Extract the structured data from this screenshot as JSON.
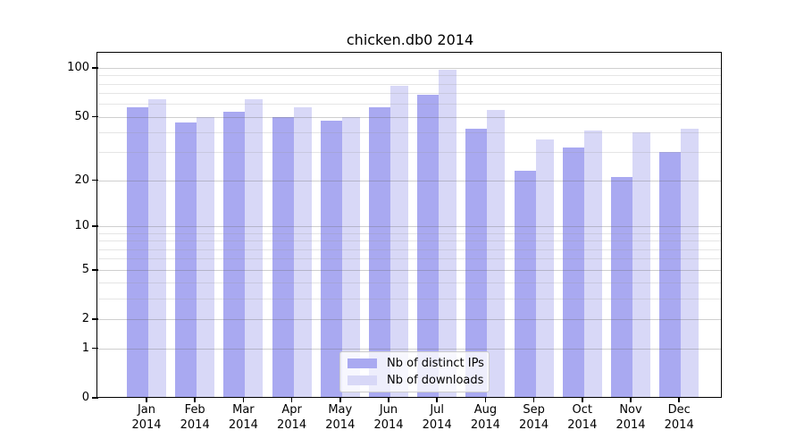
{
  "chart_data": {
    "type": "bar",
    "title": "chicken.db0 2014",
    "categories": [
      {
        "month": "Jan",
        "year": "2014"
      },
      {
        "month": "Feb",
        "year": "2014"
      },
      {
        "month": "Mar",
        "year": "2014"
      },
      {
        "month": "Apr",
        "year": "2014"
      },
      {
        "month": "May",
        "year": "2014"
      },
      {
        "month": "Jun",
        "year": "2014"
      },
      {
        "month": "Jul",
        "year": "2014"
      },
      {
        "month": "Aug",
        "year": "2014"
      },
      {
        "month": "Sep",
        "year": "2014"
      },
      {
        "month": "Oct",
        "year": "2014"
      },
      {
        "month": "Nov",
        "year": "2014"
      },
      {
        "month": "Dec",
        "year": "2014"
      }
    ],
    "series": [
      {
        "name": "Nb of distinct IPs",
        "color": "#a9a9f1",
        "values": [
          57,
          46,
          54,
          50,
          47,
          57,
          68,
          42,
          23,
          32,
          21,
          30
        ]
      },
      {
        "name": "Nb of downloads",
        "color": "#d8d8f7",
        "values": [
          64,
          50,
          64,
          57,
          50,
          78,
          98,
          55,
          36,
          41,
          40,
          42
        ]
      }
    ],
    "y_axis": {
      "scale": "log1p",
      "major_ticks": [
        100,
        50,
        20,
        10,
        5,
        2,
        1,
        0
      ],
      "tick_labels": [
        "100",
        "50",
        "20",
        "10",
        "5",
        "2",
        "1",
        "0"
      ],
      "minor_gridlines": [
        3,
        4,
        6,
        7,
        8,
        9,
        30,
        40,
        60,
        70,
        80,
        90
      ],
      "ylim": [
        0,
        122
      ]
    },
    "grid": true,
    "legend_position": "lower center",
    "axis_color": "#000000",
    "major_grid_color": "#c9c9c9",
    "minor_grid_color": "#e4e4e4"
  }
}
